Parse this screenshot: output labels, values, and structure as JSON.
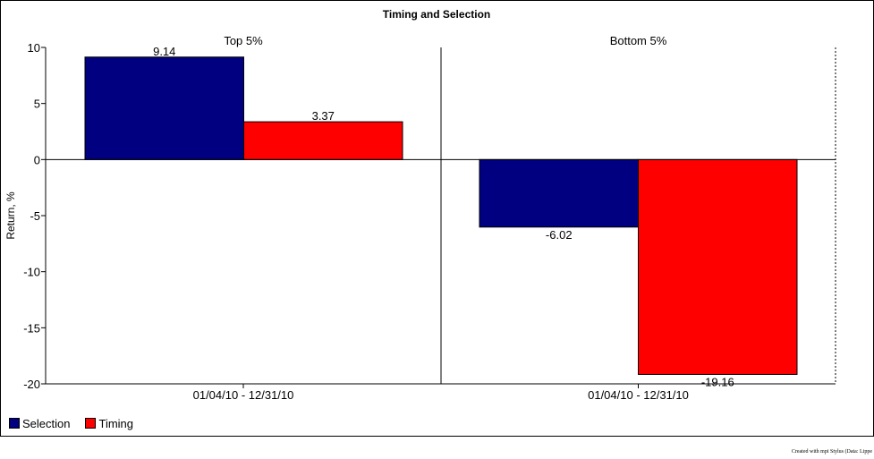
{
  "chart_data": {
    "type": "bar",
    "title": "Timing and Selection",
    "ylabel": "Return, %",
    "ylim": [
      -20,
      10
    ],
    "yticks": [
      10,
      5,
      0,
      -5,
      -10,
      -15,
      -20
    ],
    "grid": false,
    "legend_position": "bottom-left",
    "panels": [
      {
        "title": "Top 5%",
        "category": "01/04/10 - 12/31/10",
        "values": {
          "Selection": 9.14,
          "Timing": 3.37
        },
        "labels": {
          "Selection": "9.14",
          "Timing": "3.37"
        }
      },
      {
        "title": "Bottom 5%",
        "category": "01/04/10 - 12/31/10",
        "values": {
          "Selection": -6.02,
          "Timing": -19.16
        },
        "labels": {
          "Selection": "-6.02",
          "Timing": "-19.16"
        }
      }
    ],
    "series": [
      {
        "name": "Selection",
        "color": "#000080"
      },
      {
        "name": "Timing",
        "color": "#ff0000"
      }
    ]
  },
  "footer": {
    "credit": "Created with mpi Stylus (Data: Lippe"
  }
}
